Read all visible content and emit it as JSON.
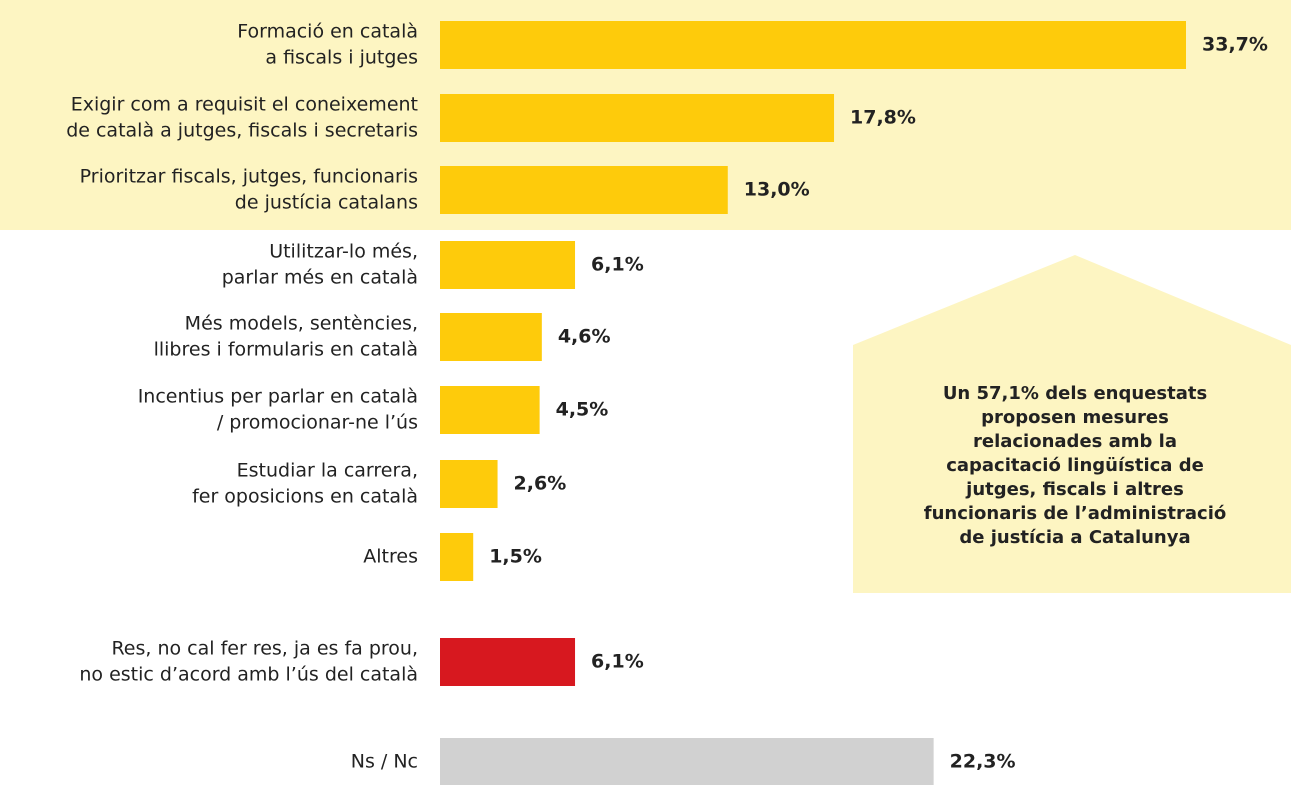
{
  "chart_data": {
    "type": "bar",
    "orientation": "horizontal",
    "categories": [
      [
        "Formació en català",
        "a fiscals i jutges"
      ],
      [
        "Exigir com a requisit el coneixement",
        "de català a jutges, fiscals i secretaris"
      ],
      [
        "Prioritzar fiscals, jutges, funcionaris",
        "de justícia catalans"
      ],
      [
        "Utilitzar-lo més,",
        "parlar més en català"
      ],
      [
        "Més models, sentències,",
        "llibres i formularis en català"
      ],
      [
        "Incentius per parlar en català",
        "/ promocionar-ne l’ús"
      ],
      [
        "Estudiar la carrera,",
        "fer oposicions en català"
      ],
      [
        "Altres"
      ],
      [
        "Res, no cal fer res, ja es fa prou,",
        "no estic d’acord amb l’ús del català"
      ],
      [
        "Ns / Nc"
      ]
    ],
    "values": [
      33.7,
      17.8,
      13.0,
      6.1,
      4.6,
      4.5,
      2.6,
      1.5,
      6.1,
      22.3
    ],
    "value_labels": [
      "33,7%",
      "17,8%",
      "13,0%",
      "6,1%",
      "4,6%",
      "4,5%",
      "2,6%",
      "1,5%",
      "6,1%",
      "22,3%"
    ],
    "colors": [
      "#fecb0b",
      "#fecb0b",
      "#fecb0b",
      "#fecb0b",
      "#fecb0b",
      "#fecb0b",
      "#fecb0b",
      "#fecb0b",
      "#d7181f",
      "#d1d1d1"
    ],
    "annotation": [
      "Un 57,1% dels enquestats",
      "proposen mesures",
      "relacionades amb la",
      "capacitació lingüística de",
      "jutges, fiscals i altres",
      "funcionaris de l’administració",
      "de justícia a Catalunya"
    ]
  }
}
